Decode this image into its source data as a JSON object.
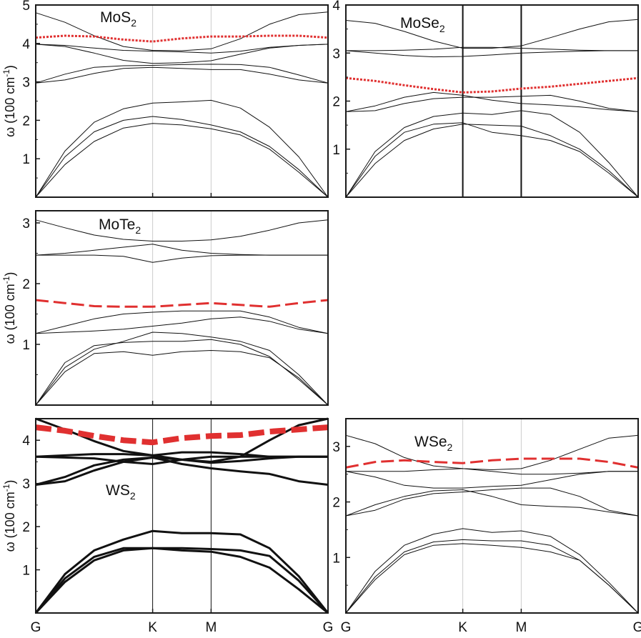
{
  "ylabel_parts": {
    "base": "ω (100 cm",
    "sup": "-1",
    "close": ")"
  },
  "high_symmetry": [
    {
      "label": "G",
      "t": 0.0
    },
    {
      "label": "K",
      "t": 0.4
    },
    {
      "label": "M",
      "t": 0.6
    },
    {
      "label": "G",
      "t": 1.0
    }
  ],
  "colors": {
    "axis": "#1a1a1a",
    "band": "#111111",
    "vline_light": "#cccccc",
    "vline_dark": "#111111",
    "highlight": "#e03030"
  },
  "chart_data": [
    {
      "id": "mos2",
      "type": "line",
      "title": {
        "base": "MoS",
        "sub": "2"
      },
      "ylabel": "ω (100 cm-1)",
      "ylim": [
        0,
        5
      ],
      "yticks": [
        1,
        2,
        3,
        4,
        5
      ],
      "xlabels_shown": false,
      "vline_style": "light",
      "band_width": 1,
      "x": [
        0,
        0.1,
        0.2,
        0.3,
        0.4,
        0.5,
        0.6,
        0.7,
        0.8,
        0.9,
        1.0
      ],
      "series": [
        {
          "values": [
            0,
            0.85,
            1.45,
            1.8,
            1.92,
            1.88,
            1.78,
            1.62,
            1.25,
            0.65,
            0
          ]
        },
        {
          "values": [
            0,
            1.05,
            1.7,
            2.0,
            2.1,
            2.02,
            1.88,
            1.7,
            1.32,
            0.72,
            0
          ]
        },
        {
          "values": [
            0,
            1.2,
            1.95,
            2.3,
            2.45,
            2.48,
            2.52,
            2.32,
            1.82,
            1.05,
            0
          ]
        },
        {
          "values": [
            2.97,
            3.05,
            3.22,
            3.35,
            3.38,
            3.35,
            3.32,
            3.32,
            3.2,
            3.05,
            2.97
          ]
        },
        {
          "values": [
            2.97,
            3.2,
            3.38,
            3.42,
            3.43,
            3.45,
            3.46,
            3.45,
            3.38,
            3.18,
            2.97
          ]
        },
        {
          "values": [
            3.98,
            3.92,
            3.75,
            3.56,
            3.48,
            3.5,
            3.55,
            3.72,
            3.88,
            3.95,
            3.98
          ]
        },
        {
          "values": [
            3.98,
            3.95,
            3.88,
            3.82,
            3.8,
            3.78,
            3.75,
            3.8,
            3.9,
            3.95,
            3.98
          ]
        },
        {
          "values": [
            4.8,
            4.55,
            4.2,
            3.92,
            3.82,
            3.81,
            3.86,
            4.12,
            4.5,
            4.75,
            4.82
          ]
        },
        {
          "values": [
            4.15,
            4.2,
            4.18,
            4.1,
            4.05,
            4.13,
            4.18,
            4.18,
            4.2,
            4.2,
            4.15
          ],
          "highlight": true,
          "style": "dotted"
        }
      ]
    },
    {
      "id": "mose2",
      "type": "line",
      "title": {
        "base": "MoSe",
        "sub": "2"
      },
      "ylabel": "",
      "ylim": [
        0,
        4
      ],
      "yticks": [
        1,
        2,
        3,
        4
      ],
      "xlabels_shown": false,
      "vline_style": "dark",
      "band_width": 1,
      "x": [
        0,
        0.1,
        0.2,
        0.3,
        0.4,
        0.5,
        0.6,
        0.7,
        0.8,
        0.9,
        1.0
      ],
      "series": [
        {
          "values": [
            0,
            0.7,
            1.18,
            1.42,
            1.52,
            1.5,
            1.48,
            1.28,
            1.0,
            0.55,
            0
          ]
        },
        {
          "values": [
            0,
            0.85,
            1.35,
            1.52,
            1.55,
            1.35,
            1.28,
            1.18,
            0.95,
            0.5,
            0
          ]
        },
        {
          "values": [
            0,
            0.95,
            1.45,
            1.68,
            1.75,
            1.72,
            1.8,
            1.72,
            1.35,
            0.72,
            0
          ]
        },
        {
          "values": [
            1.78,
            1.8,
            1.95,
            2.05,
            2.08,
            2.08,
            2.1,
            2.12,
            2.0,
            1.85,
            1.78
          ]
        },
        {
          "values": [
            1.78,
            1.9,
            2.08,
            2.18,
            2.12,
            2.02,
            1.95,
            1.92,
            1.88,
            1.82,
            1.78
          ]
        },
        {
          "values": [
            3.05,
            3.0,
            2.95,
            2.92,
            2.93,
            2.96,
            3.0,
            3.02,
            3.04,
            3.05,
            3.05
          ]
        },
        {
          "values": [
            3.05,
            3.05,
            3.06,
            3.08,
            3.12,
            3.12,
            3.1,
            3.08,
            3.06,
            3.05,
            3.05
          ]
        },
        {
          "values": [
            3.68,
            3.62,
            3.45,
            3.25,
            3.1,
            3.1,
            3.15,
            3.32,
            3.5,
            3.65,
            3.7
          ]
        },
        {
          "values": [
            2.48,
            2.42,
            2.33,
            2.25,
            2.18,
            2.2,
            2.26,
            2.3,
            2.36,
            2.42,
            2.48
          ],
          "highlight": true,
          "style": "dotted"
        }
      ]
    },
    {
      "id": "mote2",
      "type": "line",
      "title": {
        "base": "MoTe",
        "sub": "2"
      },
      "ylabel": "ω (100 cm-1)",
      "ylim": [
        0,
        3.2
      ],
      "yticks": [
        1,
        2,
        3
      ],
      "xlabels_shown": false,
      "vline_style": "light",
      "band_width": 1,
      "x": [
        0,
        0.1,
        0.2,
        0.3,
        0.4,
        0.5,
        0.6,
        0.7,
        0.8,
        0.9,
        1.0
      ],
      "series": [
        {
          "values": [
            0,
            0.55,
            0.85,
            0.88,
            0.82,
            0.88,
            0.9,
            0.88,
            0.78,
            0.45,
            0
          ]
        },
        {
          "values": [
            0,
            0.7,
            0.98,
            1.03,
            1.05,
            1.05,
            1.08,
            1.0,
            0.8,
            0.42,
            0
          ]
        },
        {
          "values": [
            0,
            0.62,
            0.92,
            1.05,
            1.2,
            1.18,
            1.12,
            1.05,
            0.9,
            0.5,
            0
          ]
        },
        {
          "values": [
            1.18,
            1.2,
            1.22,
            1.25,
            1.3,
            1.35,
            1.42,
            1.45,
            1.38,
            1.25,
            1.18
          ]
        },
        {
          "values": [
            1.18,
            1.3,
            1.42,
            1.5,
            1.53,
            1.55,
            1.55,
            1.55,
            1.45,
            1.28,
            1.18
          ]
        },
        {
          "values": [
            2.47,
            2.47,
            2.47,
            2.45,
            2.35,
            2.42,
            2.46,
            2.47,
            2.47,
            2.47,
            2.47
          ]
        },
        {
          "values": [
            2.47,
            2.5,
            2.55,
            2.6,
            2.65,
            2.55,
            2.5,
            2.48,
            2.47,
            2.47,
            2.47
          ]
        },
        {
          "values": [
            3.05,
            2.92,
            2.8,
            2.73,
            2.7,
            2.7,
            2.72,
            2.78,
            2.88,
            3.0,
            3.05
          ]
        },
        {
          "values": [
            1.73,
            1.68,
            1.63,
            1.62,
            1.62,
            1.65,
            1.68,
            1.65,
            1.62,
            1.68,
            1.73
          ],
          "highlight": true,
          "style": "dashed"
        }
      ]
    },
    {
      "id": "ws2",
      "type": "line",
      "title": {
        "base": "WS",
        "sub": "2"
      },
      "ylabel": "ω (100 cm-1)",
      "ylim": [
        0,
        4.5
      ],
      "yticks": [
        1,
        2,
        3,
        4
      ],
      "xlabels_shown": true,
      "vline_style": "dark",
      "band_width": 3,
      "x": [
        0,
        0.1,
        0.2,
        0.3,
        0.4,
        0.5,
        0.6,
        0.7,
        0.8,
        0.9,
        1.0
      ],
      "series": [
        {
          "values": [
            0,
            0.72,
            1.22,
            1.45,
            1.5,
            1.5,
            1.48,
            1.45,
            1.32,
            0.75,
            0
          ]
        },
        {
          "values": [
            0,
            0.8,
            1.3,
            1.5,
            1.5,
            1.45,
            1.42,
            1.3,
            1.05,
            0.55,
            0
          ]
        },
        {
          "values": [
            0,
            0.9,
            1.45,
            1.7,
            1.9,
            1.85,
            1.85,
            1.82,
            1.5,
            0.85,
            0
          ]
        },
        {
          "values": [
            2.97,
            3.05,
            3.3,
            3.5,
            3.6,
            3.55,
            3.48,
            3.52,
            3.58,
            3.62,
            3.62
          ]
        },
        {
          "values": [
            2.97,
            3.15,
            3.42,
            3.55,
            3.6,
            3.45,
            3.35,
            3.28,
            3.22,
            3.05,
            2.97
          ]
        },
        {
          "values": [
            3.62,
            3.6,
            3.58,
            3.5,
            3.45,
            3.55,
            3.62,
            3.62,
            3.62,
            3.62,
            3.62
          ]
        },
        {
          "values": [
            3.62,
            3.65,
            3.68,
            3.68,
            3.65,
            3.72,
            3.72,
            3.68,
            3.62,
            3.62,
            3.62
          ]
        },
        {
          "values": [
            4.5,
            4.25,
            3.98,
            3.75,
            3.65,
            3.55,
            3.5,
            3.62,
            4.0,
            4.35,
            4.5
          ]
        },
        {
          "values": [
            4.3,
            4.22,
            4.1,
            4.0,
            3.95,
            4.05,
            4.1,
            4.12,
            4.2,
            4.25,
            4.3
          ],
          "highlight": true,
          "style": "dashed-bold"
        }
      ]
    },
    {
      "id": "wse2",
      "type": "line",
      "title": {
        "base": "WSe",
        "sub": "2"
      },
      "ylabel": "",
      "ylim": [
        0,
        3.5
      ],
      "yticks": [
        1,
        2,
        3
      ],
      "xlabels_shown": true,
      "vline_style": "light",
      "band_width": 1,
      "x": [
        0,
        0.1,
        0.2,
        0.3,
        0.4,
        0.5,
        0.6,
        0.7,
        0.8,
        0.9,
        1.0
      ],
      "series": [
        {
          "values": [
            0,
            0.6,
            1.05,
            1.22,
            1.25,
            1.22,
            1.18,
            1.1,
            0.95,
            0.5,
            0
          ]
        },
        {
          "values": [
            0,
            0.65,
            1.1,
            1.28,
            1.32,
            1.3,
            1.3,
            1.22,
            0.95,
            0.5,
            0
          ]
        },
        {
          "values": [
            0,
            0.75,
            1.22,
            1.42,
            1.52,
            1.45,
            1.48,
            1.38,
            1.05,
            0.55,
            0
          ]
        },
        {
          "values": [
            1.75,
            1.85,
            2.05,
            2.15,
            2.18,
            2.22,
            2.25,
            2.25,
            2.1,
            1.85,
            1.75
          ]
        },
        {
          "values": [
            1.75,
            1.95,
            2.1,
            2.2,
            2.22,
            2.1,
            1.95,
            1.92,
            1.9,
            1.82,
            1.75
          ]
        },
        {
          "values": [
            2.55,
            2.45,
            2.3,
            2.25,
            2.25,
            2.28,
            2.3,
            2.4,
            2.5,
            2.55,
            2.55
          ]
        },
        {
          "values": [
            2.55,
            2.55,
            2.55,
            2.58,
            2.6,
            2.55,
            2.5,
            2.5,
            2.52,
            2.55,
            2.55
          ]
        },
        {
          "values": [
            3.2,
            3.05,
            2.8,
            2.65,
            2.6,
            2.58,
            2.6,
            2.75,
            2.95,
            3.15,
            3.2
          ]
        },
        {
          "values": [
            2.62,
            2.72,
            2.75,
            2.72,
            2.7,
            2.75,
            2.78,
            2.78,
            2.78,
            2.72,
            2.62
          ],
          "highlight": true,
          "style": "dashed"
        }
      ]
    }
  ]
}
